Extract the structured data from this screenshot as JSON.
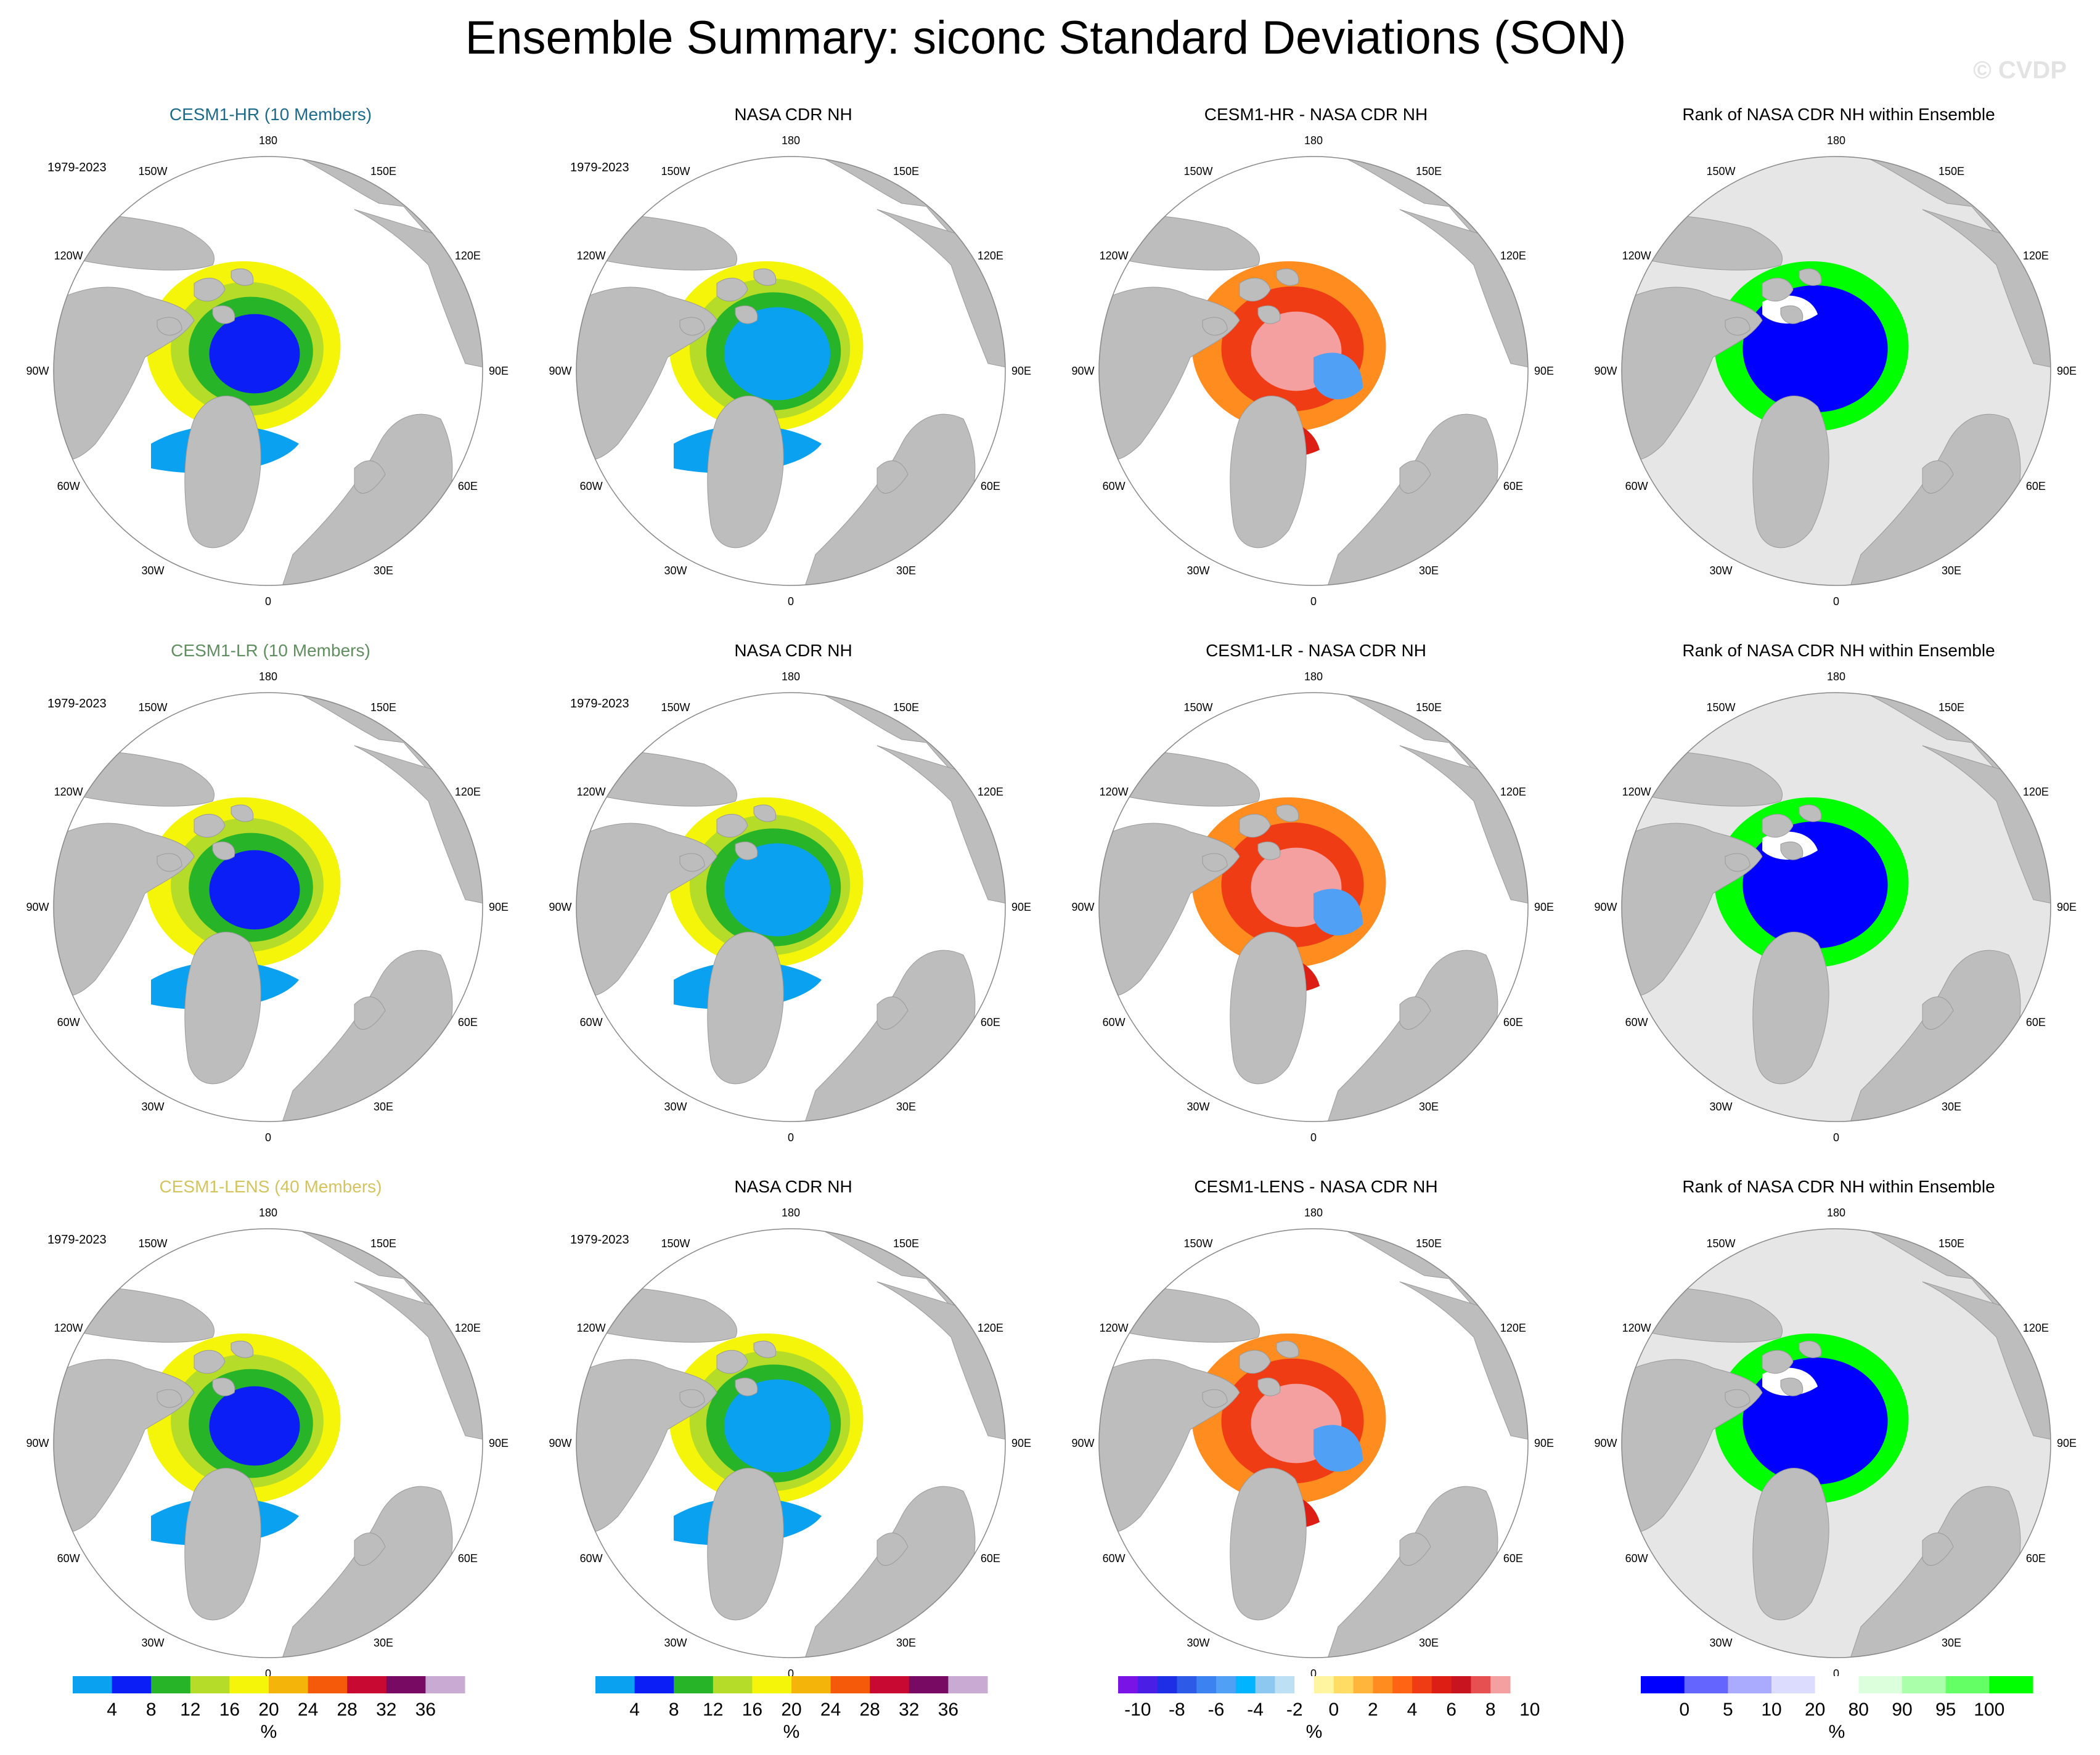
{
  "title": "Ensemble Summary: siconc Standard Deviations (SON)",
  "watermark": "© CVDP",
  "colors": {
    "land": "#bdbdbd",
    "ocean": "#ffffff",
    "rank_ocean": "#e6e6e6",
    "hr_title": "#1c6b8a",
    "lr_title": "#5f8f5f",
    "lens_title": "#d4c460"
  },
  "lon_labels": [
    "180",
    "150E",
    "120E",
    "90E",
    "60E",
    "30E",
    "0",
    "30W",
    "60W",
    "90W",
    "120W",
    "150W"
  ],
  "panels": [
    {
      "row": 0,
      "col": 0,
      "title": "CESM1-HR (10 Members)",
      "period": "1979-2023",
      "kind": "model",
      "title_color": "hr"
    },
    {
      "row": 0,
      "col": 1,
      "title": "NASA CDR NH",
      "period": "1979-2023",
      "kind": "obs"
    },
    {
      "row": 0,
      "col": 2,
      "title": "CESM1-HR - NASA CDR NH",
      "period": "",
      "kind": "diff"
    },
    {
      "row": 0,
      "col": 3,
      "title": "Rank of NASA CDR NH within Ensemble",
      "period": "",
      "kind": "rank"
    },
    {
      "row": 1,
      "col": 0,
      "title": "CESM1-LR (10 Members)",
      "period": "1979-2023",
      "kind": "model",
      "title_color": "lr"
    },
    {
      "row": 1,
      "col": 1,
      "title": "NASA CDR NH",
      "period": "1979-2023",
      "kind": "obs"
    },
    {
      "row": 1,
      "col": 2,
      "title": "CESM1-LR - NASA CDR NH",
      "period": "",
      "kind": "diff"
    },
    {
      "row": 1,
      "col": 3,
      "title": "Rank of NASA CDR NH within Ensemble",
      "period": "",
      "kind": "rank"
    },
    {
      "row": 2,
      "col": 0,
      "title": "CESM1-LENS (40 Members)",
      "period": "1979-2023",
      "kind": "model",
      "title_color": "lens"
    },
    {
      "row": 2,
      "col": 1,
      "title": "NASA CDR NH",
      "period": "1979-2023",
      "kind": "obs"
    },
    {
      "row": 2,
      "col": 2,
      "title": "CESM1-LENS - NASA CDR NH",
      "period": "",
      "kind": "diff"
    },
    {
      "row": 2,
      "col": 3,
      "title": "Rank of NASA CDR NH within Ensemble",
      "period": "",
      "kind": "rank"
    }
  ],
  "colorbars": [
    {
      "unit": "%",
      "ticks": [
        "4",
        "8",
        "12",
        "16",
        "20",
        "24",
        "28",
        "32",
        "36"
      ],
      "colors": [
        "#0aa2f0",
        "#0a1ef5",
        "#28b428",
        "#b4dc28",
        "#f5f50a",
        "#f5b40a",
        "#f55a0a",
        "#c80a32",
        "#780a64",
        "#c8aad2"
      ]
    },
    {
      "unit": "%",
      "ticks": [
        "4",
        "8",
        "12",
        "16",
        "20",
        "24",
        "28",
        "32",
        "36"
      ],
      "colors": [
        "#0aa2f0",
        "#0a1ef5",
        "#28b428",
        "#b4dc28",
        "#f5f50a",
        "#f5b40a",
        "#f55a0a",
        "#c80a32",
        "#780a64",
        "#c8aad2"
      ]
    },
    {
      "unit": "%",
      "ticks": [
        "-10",
        "-8",
        "-6",
        "-4",
        "-2",
        "0",
        "2",
        "4",
        "6",
        "8",
        "10"
      ],
      "colors": [
        "#7a14e6",
        "#4b1ee6",
        "#1e2de6",
        "#2d5ae6",
        "#3c82f0",
        "#50a0f5",
        "#00b4ff",
        "#8cc8f0",
        "#bee0f5",
        "#ffffff",
        "#fff5a0",
        "#ffdc64",
        "#ffb43c",
        "#ff8c1e",
        "#ff6414",
        "#f03c14",
        "#dc1e14",
        "#c8141e",
        "#e65050",
        "#f5a0a0"
      ]
    },
    {
      "unit": "%",
      "ticks": [
        "0",
        "5",
        "10",
        "20",
        "80",
        "90",
        "95",
        "100"
      ],
      "colors": [
        "#0000ff",
        "#6464ff",
        "#aaaaff",
        "#dcdcff",
        "#ffffff",
        "#dcffdc",
        "#aaffaa",
        "#64ff64",
        "#00ff00"
      ]
    }
  ]
}
